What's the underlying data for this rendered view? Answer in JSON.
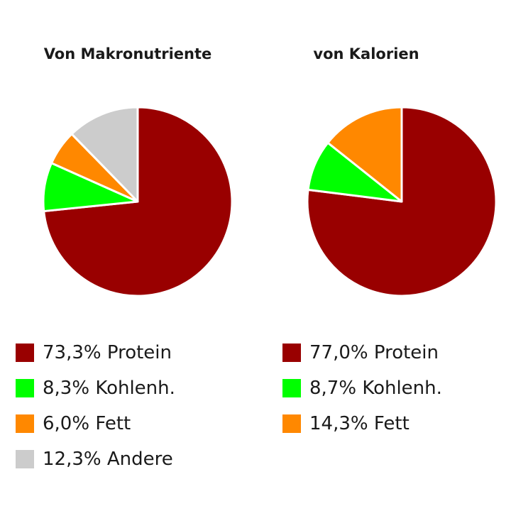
{
  "chart_data": [
    {
      "type": "pie",
      "title": "Von Makronutriente",
      "slices": [
        {
          "label": "Protein",
          "value": 73.3,
          "legend_text": "73,3% Protein",
          "color": "#990000"
        },
        {
          "label": "Kohlenh.",
          "value": 8.3,
          "legend_text": "8,3% Kohlenh.",
          "color": "#00ff00"
        },
        {
          "label": "Fett",
          "value": 6.0,
          "legend_text": "6,0% Fett",
          "color": "#ff8800"
        },
        {
          "label": "Andere",
          "value": 12.3,
          "legend_text": "12,3% Andere",
          "color": "#cccccc"
        }
      ],
      "legend_position": "bottom"
    },
    {
      "type": "pie",
      "title": "von Kalorien",
      "slices": [
        {
          "label": "Protein",
          "value": 77.0,
          "legend_text": "77,0% Protein",
          "color": "#990000"
        },
        {
          "label": "Kohlenh.",
          "value": 8.7,
          "legend_text": "8,7% Kohlenh.",
          "color": "#00ff00"
        },
        {
          "label": "Fett",
          "value": 14.3,
          "legend_text": "14,3% Fett",
          "color": "#ff8800"
        }
      ],
      "legend_position": "bottom"
    }
  ]
}
